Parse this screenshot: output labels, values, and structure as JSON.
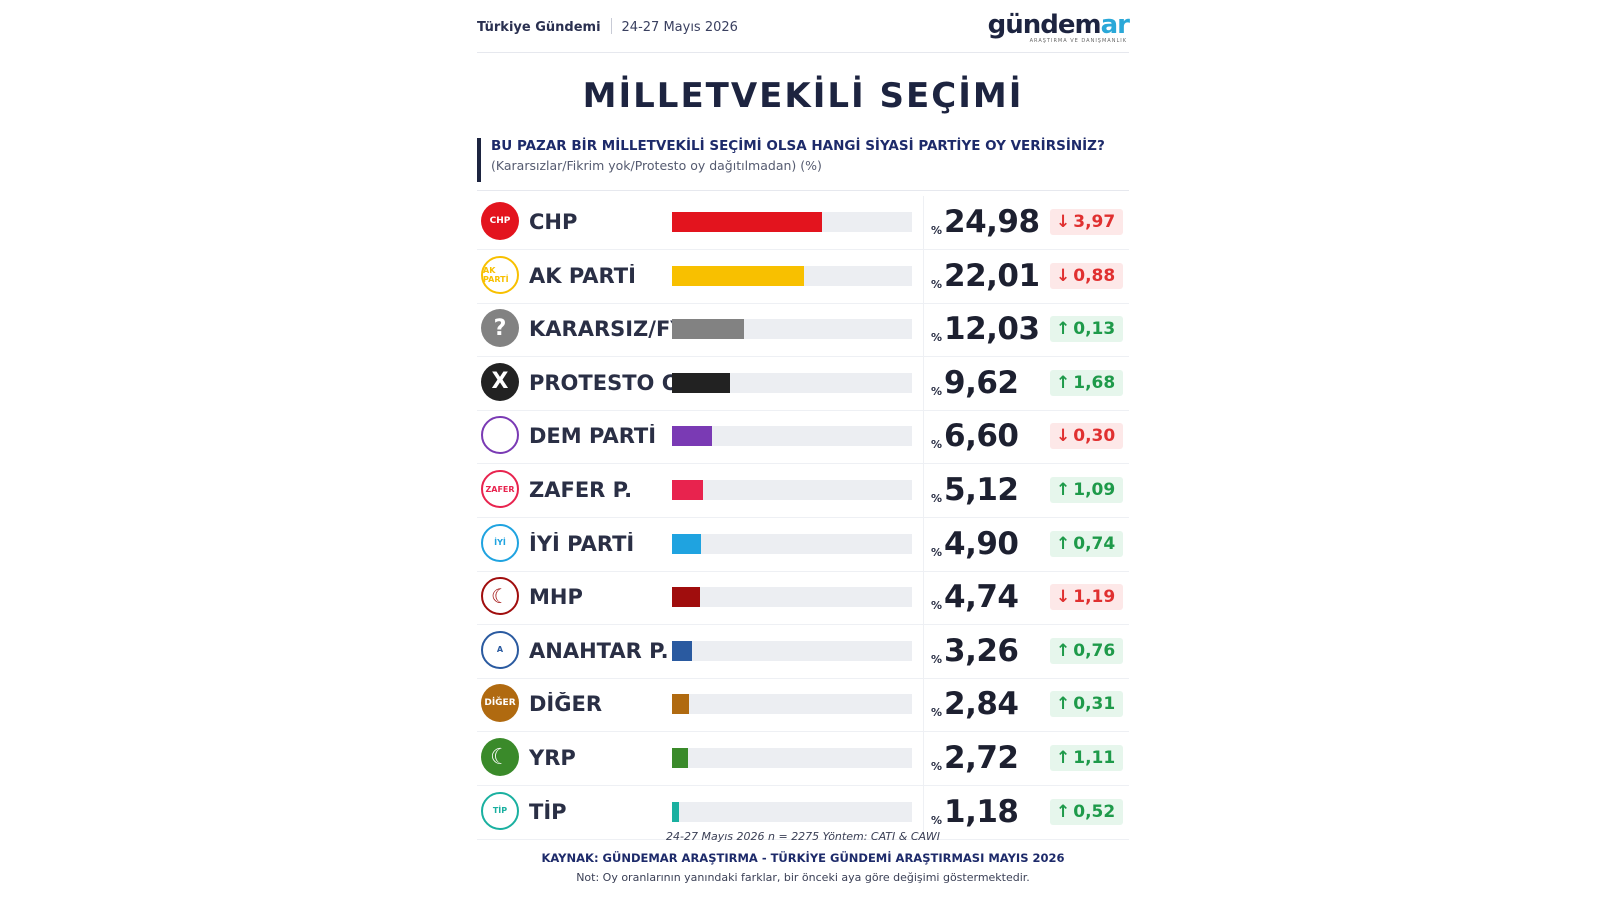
{
  "header": {
    "source_label": "Türkiye Gündemi",
    "date_label": "24-27 Mayıs 2026",
    "logo_text_main": "gündem",
    "logo_text_accent": "ar",
    "logo_subtext": "ARAŞTIRMA VE DANIŞMANLIK"
  },
  "title": "MİLLETVEKİLİ SEÇİMİ",
  "question": "BU PAZAR BİR MİLLETVEKİLİ SEÇİMİ OLSA HANGİ SİYASİ PARTİYE OY VERİRSİNİZ?",
  "question_note": "(Kararsızlar/Fikrim yok/Protesto oy dağıtılmadan) (%)",
  "chart_data": {
    "type": "bar",
    "orientation": "horizontal",
    "xlim": [
      0,
      40
    ],
    "percent_symbol": "%",
    "categories": [
      "CHP",
      "AK PARTİ",
      "KARARSIZ/FY",
      "PROTESTO O.",
      "DEM PARTİ",
      "ZAFER P.",
      "İYİ PARTİ",
      "MHP",
      "ANAHTAR P.",
      "DİĞER",
      "YRP",
      "TİP"
    ],
    "values": [
      24.98,
      22.01,
      12.03,
      9.62,
      6.6,
      5.12,
      4.9,
      4.74,
      3.26,
      2.84,
      2.72,
      1.18
    ],
    "value_labels": [
      "24,98",
      "22,01",
      "12,03",
      "9,62",
      "6,60",
      "5,12",
      "4,90",
      "4,74",
      "3,26",
      "2,84",
      "2,72",
      "1,18"
    ],
    "changes": [
      -3.97,
      -0.88,
      0.13,
      1.68,
      -0.3,
      1.09,
      0.74,
      -1.19,
      0.76,
      0.31,
      1.11,
      0.52
    ],
    "change_labels": [
      "3,97",
      "0,88",
      "0,13",
      "1,68",
      "0,30",
      "1,09",
      "0,74",
      "1,19",
      "0,76",
      "0,31",
      "1,11",
      "0,52"
    ],
    "colors": [
      "#e3141e",
      "#f8c000",
      "#828282",
      "#222222",
      "#7a3ab4",
      "#e8234e",
      "#1fa3e0",
      "#a00d0d",
      "#2a5aa0",
      "#b06a10",
      "#3a8a2a",
      "#1ab0a0"
    ],
    "logo_text": [
      "CHP",
      "AK PARTİ",
      "?",
      "X",
      "",
      "ZAFER",
      "İYİ",
      "☾",
      "A",
      "DİĞER",
      "☾",
      "TİP"
    ],
    "logo_icons": [
      "chp-logo-icon",
      "akp-logo-icon",
      "question-icon",
      "x-icon",
      "dem-logo-icon",
      "zafer-logo-icon",
      "iyi-logo-icon",
      "mhp-logo-icon",
      "anahtar-logo-icon",
      "diger-logo-icon",
      "yrp-logo-icon",
      "tip-logo-icon"
    ]
  },
  "footer": {
    "methodology": "24-27 Mayıs 2026 n = 2275 Yöntem: CATI & CAWI",
    "source": "KAYNAK: GÜNDEMAR ARAŞTIRMA - TÜRKİYE GÜNDEMİ ARAŞTIRMASI MAYIS 2026",
    "note": "Not: Oy oranlarının yanındaki farklar, bir önceki aya göre değişimi göstermektedir."
  }
}
